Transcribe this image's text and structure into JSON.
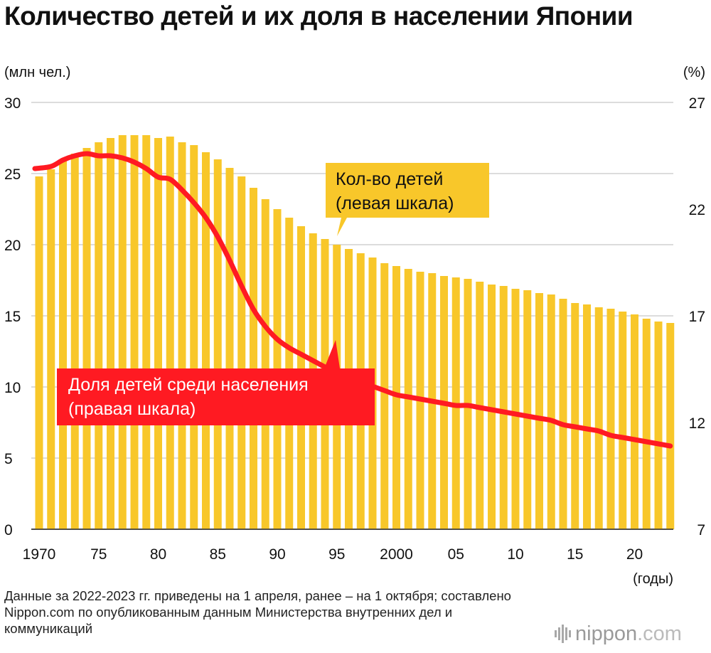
{
  "title": "Количество детей и их доля в населении Японии",
  "colors": {
    "bar": "#f8c72a",
    "line": "#ff1a22",
    "grid": "#c8c8c8",
    "text": "#111111"
  },
  "chart_data": {
    "type": "bar",
    "left_unit": "(млн чел.)",
    "right_unit": "(%)",
    "x_unit": "(годы)",
    "left_ylim": [
      0,
      30
    ],
    "left_ticks": [
      "0",
      "5",
      "10",
      "15",
      "20",
      "25",
      "30"
    ],
    "right_ylim": [
      7,
      27
    ],
    "right_ticks": [
      "7",
      "12",
      "17",
      "22",
      "27"
    ],
    "x_tick_labels": [
      {
        "year": 1970,
        "label": "1970"
      },
      {
        "year": 1975,
        "label": "75"
      },
      {
        "year": 1980,
        "label": "80"
      },
      {
        "year": 1985,
        "label": "85"
      },
      {
        "year": 1990,
        "label": "90"
      },
      {
        "year": 1995,
        "label": "95"
      },
      {
        "year": 2000,
        "label": "2000"
      },
      {
        "year": 2005,
        "label": "05"
      },
      {
        "year": 2010,
        "label": "10"
      },
      {
        "year": 2015,
        "label": "15"
      },
      {
        "year": 2020,
        "label": "20"
      }
    ],
    "years": [
      1970,
      1971,
      1972,
      1973,
      1974,
      1975,
      1976,
      1977,
      1978,
      1979,
      1980,
      1981,
      1982,
      1983,
      1984,
      1985,
      1986,
      1987,
      1988,
      1989,
      1990,
      1991,
      1992,
      1993,
      1994,
      1995,
      1996,
      1997,
      1998,
      1999,
      2000,
      2001,
      2002,
      2003,
      2004,
      2005,
      2006,
      2007,
      2008,
      2009,
      2010,
      2011,
      2012,
      2013,
      2014,
      2015,
      2016,
      2017,
      2018,
      2019,
      2020,
      2021,
      2022,
      2023
    ],
    "series": [
      {
        "name": "Кол-во детей",
        "axis": "left",
        "type": "bar",
        "values": [
          24.8,
          25.3,
          25.9,
          26.4,
          26.8,
          27.2,
          27.5,
          27.7,
          27.7,
          27.7,
          27.5,
          27.6,
          27.2,
          27.0,
          26.5,
          26.0,
          25.4,
          24.8,
          24.0,
          23.2,
          22.5,
          21.9,
          21.3,
          20.8,
          20.4,
          20.0,
          19.7,
          19.4,
          19.1,
          18.7,
          18.5,
          18.3,
          18.1,
          18.0,
          17.8,
          17.7,
          17.6,
          17.4,
          17.2,
          17.1,
          16.9,
          16.8,
          16.6,
          16.5,
          16.2,
          15.9,
          15.8,
          15.6,
          15.5,
          15.3,
          15.1,
          14.8,
          14.6,
          14.5
        ]
      },
      {
        "name": "Доля детей среди населения",
        "axis": "right",
        "type": "line",
        "values": [
          23.9,
          24.0,
          24.3,
          24.5,
          24.6,
          24.5,
          24.5,
          24.4,
          24.2,
          23.9,
          23.5,
          23.4,
          22.9,
          22.3,
          21.6,
          20.7,
          19.6,
          18.4,
          17.3,
          16.5,
          15.9,
          15.5,
          15.2,
          14.9,
          14.6,
          14.3,
          14.1,
          13.9,
          13.7,
          13.5,
          13.3,
          13.2,
          13.1,
          13.0,
          12.9,
          12.8,
          12.8,
          12.7,
          12.6,
          12.5,
          12.4,
          12.3,
          12.2,
          12.1,
          11.9,
          11.8,
          11.7,
          11.6,
          11.4,
          11.3,
          11.2,
          11.1,
          11.0,
          10.9
        ]
      }
    ],
    "callouts": {
      "bars": [
        "Кол-во детей",
        "(левая шкала)"
      ],
      "line": [
        "Доля детей среди населения",
        "(правая шкала)"
      ]
    }
  },
  "footnote": "Данные за 2022-2023 гг. приведены на 1 апреля, ранее – на 1 октября; составлено Nippon.com по опубликованным данным Министерства внутренних дел и коммуникаций",
  "logo": {
    "name": "nippon",
    "suffix": ".com"
  }
}
